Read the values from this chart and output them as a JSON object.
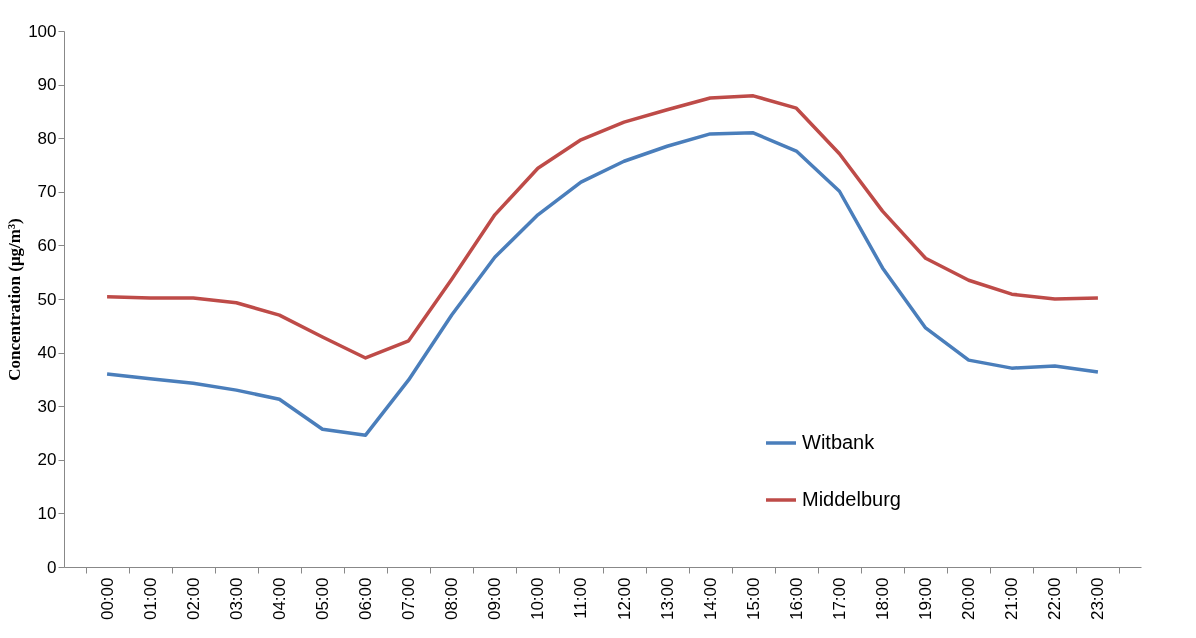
{
  "chart_data": {
    "type": "line",
    "ylabel": "Concentration (μg/m³)",
    "categories": [
      "00:00",
      "01:00",
      "02:00",
      "03:00",
      "04:00",
      "05:00",
      "06:00",
      "07:00",
      "08:00",
      "09:00",
      "10:00",
      "11:00",
      "12:00",
      "13:00",
      "14:00",
      "15:00",
      "16:00",
      "17:00",
      "18:00",
      "19:00",
      "20:00",
      "21:00",
      "22:00",
      "23:00"
    ],
    "series": [
      {
        "name": "Witbank",
        "color": "#4a7ebb",
        "values": [
          36.0,
          35.1,
          34.3,
          33.0,
          31.3,
          25.7,
          24.6,
          34.9,
          47.0,
          57.8,
          65.7,
          71.8,
          75.7,
          78.5,
          80.8,
          81.0,
          77.6,
          70.1,
          55.8,
          44.6,
          38.6,
          37.1,
          37.5,
          36.4
        ]
      },
      {
        "name": "Middelburg",
        "color": "#be4b48",
        "values": [
          50.4,
          50.2,
          50.2,
          49.3,
          47.0,
          42.9,
          39.0,
          42.2,
          53.7,
          65.7,
          74.4,
          79.7,
          83.0,
          85.3,
          87.5,
          87.9,
          85.6,
          77.1,
          66.4,
          57.6,
          53.5,
          50.9,
          50.0,
          50.2
        ]
      }
    ],
    "ylim": [
      0,
      100
    ],
    "yticks": [
      0,
      10,
      20,
      30,
      40,
      50,
      60,
      70,
      80,
      90,
      100
    ],
    "legend": "bottom right",
    "marker": "none",
    "line_style": "solid"
  }
}
